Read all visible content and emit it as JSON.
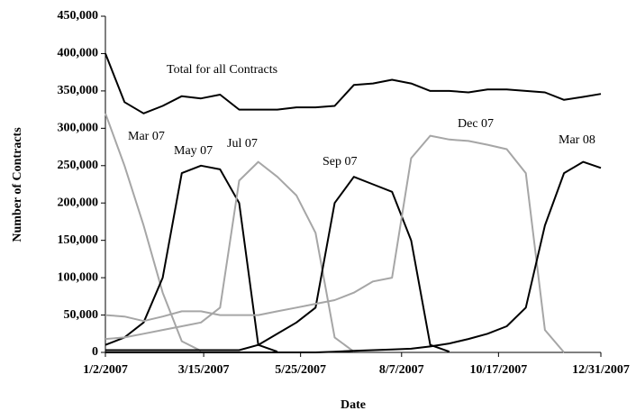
{
  "chart_data": {
    "type": "line",
    "y_label": "Number of Contracts",
    "x_label": "Date",
    "x": [
      "1/2/2007",
      "1/16/2007",
      "1/30/2007",
      "2/13/2007",
      "2/27/2007",
      "3/13/2007",
      "3/27/2007",
      "4/10/2007",
      "4/24/2007",
      "5/8/2007",
      "5/22/2007",
      "6/5/2007",
      "6/19/2007",
      "7/3/2007",
      "7/17/2007",
      "7/31/2007",
      "8/14/2007",
      "8/28/2007",
      "9/11/2007",
      "9/25/2007",
      "10/9/2007",
      "10/23/2007",
      "11/6/2007",
      "11/20/2007",
      "12/4/2007",
      "12/18/2007",
      "12/31/2007"
    ],
    "series": [
      {
        "name": "Total for all Contracts",
        "color": "#000000",
        "values": [
          400000,
          335000,
          320000,
          330000,
          343000,
          340000,
          345000,
          325000,
          325000,
          325000,
          328000,
          328000,
          330000,
          358000,
          360000,
          365000,
          360000,
          350000,
          350000,
          348000,
          352000,
          352000,
          350000,
          348000,
          338000,
          342000,
          346000
        ]
      },
      {
        "name": "Mar 07",
        "color": "#a6a6a6",
        "values": [
          320000,
          250000,
          170000,
          80000,
          15000,
          2000,
          null,
          null,
          null,
          null,
          null,
          null,
          null,
          null,
          null,
          null,
          null,
          null,
          null,
          null,
          null,
          null,
          null,
          null,
          null,
          null,
          null
        ]
      },
      {
        "name": "May 07",
        "color": "#000000",
        "values": [
          10000,
          20000,
          40000,
          100000,
          240000,
          250000,
          245000,
          200000,
          10000,
          1000,
          null,
          null,
          null,
          null,
          null,
          null,
          null,
          null,
          null,
          null,
          null,
          null,
          null,
          null,
          null,
          null,
          null
        ]
      },
      {
        "name": "Jul 07",
        "color": "#a6a6a6",
        "values": [
          18000,
          20000,
          25000,
          30000,
          35000,
          40000,
          60000,
          230000,
          255000,
          235000,
          210000,
          160000,
          20000,
          1000,
          null,
          null,
          null,
          null,
          null,
          null,
          null,
          null,
          null,
          null,
          null,
          null,
          null
        ]
      },
      {
        "name": "Sep 07",
        "color": "#000000",
        "values": [
          3000,
          3000,
          3000,
          3000,
          3000,
          3000,
          3000,
          3000,
          10000,
          25000,
          40000,
          60000,
          200000,
          235000,
          225000,
          215000,
          150000,
          10000,
          1000,
          null,
          null,
          null,
          null,
          null,
          null,
          null,
          null
        ]
      },
      {
        "name": "Dec 07",
        "color": "#a6a6a6",
        "values": [
          50000,
          48000,
          42000,
          48000,
          55000,
          55000,
          50000,
          50000,
          50000,
          55000,
          60000,
          65000,
          70000,
          80000,
          95000,
          100000,
          260000,
          290000,
          285000,
          283000,
          278000,
          272000,
          240000,
          30000,
          0,
          null,
          null
        ]
      },
      {
        "name": "Mar 08",
        "color": "#000000",
        "values": [
          0,
          0,
          0,
          0,
          0,
          0,
          0,
          0,
          0,
          0,
          0,
          0,
          1000,
          2000,
          3000,
          4000,
          5000,
          8000,
          12000,
          18000,
          25000,
          35000,
          60000,
          170000,
          240000,
          255000,
          247000
        ]
      }
    ],
    "xlim": [
      "1/2/2007",
      "12/31/2007"
    ],
    "xticks": [
      "1/2/2007",
      "3/15/2007",
      "5/25/2007",
      "8/7/2007",
      "10/17/2007",
      "12/31/2007"
    ],
    "ylim": [
      0,
      450000
    ],
    "yticks": [
      {
        "value": 0,
        "label": "0"
      },
      {
        "value": 50000,
        "label": "50,000"
      },
      {
        "value": 100000,
        "label": "100,000"
      },
      {
        "value": 150000,
        "label": "150,000"
      },
      {
        "value": 200000,
        "label": "200,000"
      },
      {
        "value": 250000,
        "label": "250,000"
      },
      {
        "value": 300000,
        "label": "300,000"
      },
      {
        "value": 350000,
        "label": "350,000"
      },
      {
        "value": 400000,
        "label": "400,000"
      },
      {
        "value": 450000,
        "label": "450,000"
      }
    ]
  }
}
